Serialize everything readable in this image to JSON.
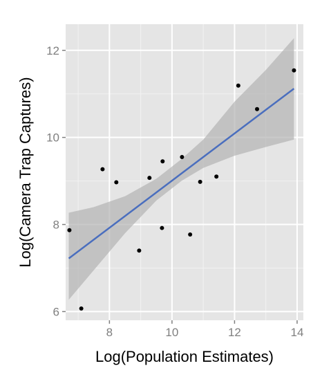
{
  "chart_data": {
    "type": "scatter",
    "xlabel": "Log(Population Estimates)",
    "ylabel": "Log(Camera Trap Captures)",
    "xlim": [
      6.6,
      14.2
    ],
    "ylim": [
      5.8,
      12.6
    ],
    "x_ticks": [
      8,
      10,
      12,
      14
    ],
    "y_ticks": [
      6,
      8,
      10,
      12
    ],
    "grid": true,
    "points": [
      {
        "x": 6.72,
        "y": 7.87
      },
      {
        "x": 7.1,
        "y": 6.07
      },
      {
        "x": 7.78,
        "y": 9.27
      },
      {
        "x": 8.22,
        "y": 8.97
      },
      {
        "x": 8.95,
        "y": 7.4
      },
      {
        "x": 9.28,
        "y": 9.07
      },
      {
        "x": 9.68,
        "y": 7.92
      },
      {
        "x": 9.7,
        "y": 9.45
      },
      {
        "x": 10.32,
        "y": 9.55
      },
      {
        "x": 10.58,
        "y": 7.77
      },
      {
        "x": 10.9,
        "y": 8.98
      },
      {
        "x": 11.42,
        "y": 9.1
      },
      {
        "x": 12.12,
        "y": 11.19
      },
      {
        "x": 12.72,
        "y": 10.65
      },
      {
        "x": 13.9,
        "y": 11.54
      }
    ],
    "fit_line": {
      "x": [
        6.7,
        13.9
      ],
      "y": [
        7.22,
        11.12
      ]
    },
    "confidence_band": {
      "x": [
        6.7,
        7.5,
        8.5,
        9.5,
        10.3,
        11.0,
        12.0,
        13.0,
        13.9
      ],
      "lower": [
        6.27,
        6.95,
        7.8,
        8.55,
        9.0,
        9.3,
        9.58,
        9.78,
        9.95
      ],
      "upper": [
        8.27,
        8.4,
        8.65,
        9.05,
        9.5,
        9.95,
        10.82,
        11.55,
        12.28
      ]
    },
    "colors": {
      "panel": "#e5e5e5",
      "grid": "#ffffff",
      "point": "#000000",
      "line": "#4a6ebe",
      "band": "#b3b3b3"
    }
  }
}
